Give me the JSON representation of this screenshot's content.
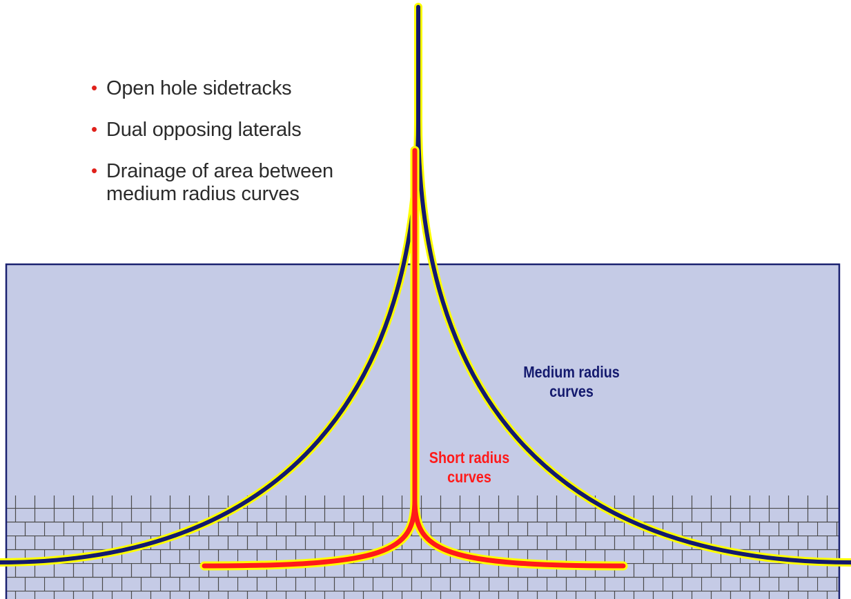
{
  "bullets": [
    "Open hole sidetracks",
    "Dual opposing laterals",
    "Drainage of area between\nmedium radius curves"
  ],
  "labels": {
    "medium": "Medium radius\ncurves",
    "short": "Short radius\ncurves"
  },
  "colors": {
    "formation": "#c5cbe6",
    "formation_border": "#1a2170",
    "medium_curve": "#141a6e",
    "medium_outline": "#ffff00",
    "short_curve": "#ff1a1a",
    "short_outline": "#ffff00",
    "bullet": "#e0211b",
    "brick_line": "#4a4a4a"
  }
}
